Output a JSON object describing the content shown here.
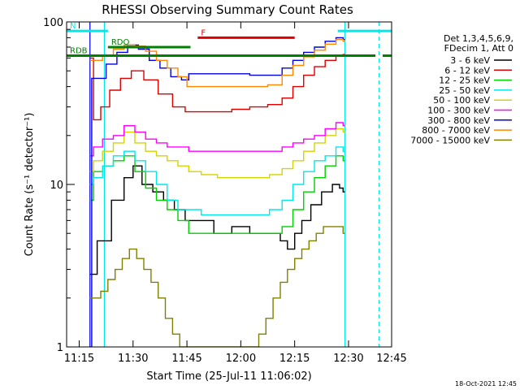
{
  "chart_data": {
    "type": "line",
    "title": "RHESSI Observing Summary Count Rates",
    "xlabel": "Start Time (25-Jul-11 11:06:02)",
    "ylabel": "Count Rate (s⁻¹ detector⁻¹)",
    "yscale": "log",
    "ylim": [
      1,
      100
    ],
    "xlim_minutes": [
      11.5,
      102
    ],
    "x_ticks": [
      {
        "label": "11:15",
        "minutes": 15
      },
      {
        "label": "11:30",
        "minutes": 30
      },
      {
        "label": "11:45",
        "minutes": 45
      },
      {
        "label": "12:00",
        "minutes": 60
      },
      {
        "label": "12:15",
        "minutes": 75
      },
      {
        "label": "12:30",
        "minutes": 90
      },
      {
        "label": "12:45",
        "minutes": 105
      }
    ],
    "y_ticks": [
      {
        "label": "1",
        "value": 1
      },
      {
        "label": "10",
        "value": 10
      },
      {
        "label": "100",
        "value": 100
      }
    ],
    "legend_header": [
      "Det 1,3,4,5,6,9,",
      "FDecim 1, Att 0"
    ],
    "legend_position": "right",
    "series": [
      {
        "name": "3 - 6 keV",
        "color": "#000000",
        "points": [
          [
            18,
            2.8
          ],
          [
            22,
            4.5
          ],
          [
            26,
            8
          ],
          [
            29,
            11
          ],
          [
            31,
            13
          ],
          [
            34,
            10
          ],
          [
            37,
            9
          ],
          [
            40,
            8
          ],
          [
            43,
            7
          ],
          [
            46,
            6
          ],
          [
            50,
            6
          ],
          [
            55,
            5
          ],
          [
            60,
            5.5
          ],
          [
            65,
            5
          ],
          [
            70,
            5
          ],
          [
            72,
            4.5
          ],
          [
            74,
            4
          ],
          [
            76,
            5
          ],
          [
            78,
            6
          ],
          [
            81,
            7.5
          ],
          [
            84,
            9
          ],
          [
            87,
            10
          ],
          [
            88,
            9.5
          ],
          [
            89,
            9
          ]
        ]
      },
      {
        "name": "6 - 12 keV",
        "color": "#e00000",
        "points": [
          [
            18,
            60
          ],
          [
            20,
            25
          ],
          [
            22,
            30
          ],
          [
            25,
            38
          ],
          [
            28,
            45
          ],
          [
            31,
            50
          ],
          [
            35,
            44
          ],
          [
            39,
            36
          ],
          [
            43,
            30
          ],
          [
            46,
            28
          ],
          [
            50,
            28
          ],
          [
            55,
            28
          ],
          [
            60,
            29
          ],
          [
            65,
            30
          ],
          [
            70,
            31
          ],
          [
            73,
            34
          ],
          [
            76,
            40
          ],
          [
            79,
            47
          ],
          [
            82,
            53
          ],
          [
            85,
            58
          ],
          [
            88,
            62
          ],
          [
            89,
            63
          ]
        ]
      },
      {
        "name": "12 - 25 keV",
        "color": "#00d000",
        "points": [
          [
            18,
            8
          ],
          [
            20,
            12
          ],
          [
            23,
            13
          ],
          [
            26,
            14
          ],
          [
            29,
            15
          ],
          [
            32,
            12
          ],
          [
            35,
            9.5
          ],
          [
            38,
            8
          ],
          [
            41,
            7
          ],
          [
            44,
            6
          ],
          [
            47,
            5
          ],
          [
            51,
            5
          ],
          [
            56,
            5
          ],
          [
            61,
            5
          ],
          [
            66,
            5
          ],
          [
            70,
            5
          ],
          [
            73,
            5.5
          ],
          [
            76,
            7
          ],
          [
            79,
            9
          ],
          [
            82,
            11
          ],
          [
            85,
            13
          ],
          [
            88,
            15
          ],
          [
            89,
            14
          ]
        ]
      },
      {
        "name": "25 - 50 keV",
        "color": "#00e8e8",
        "points": [
          [
            18,
            10
          ],
          [
            20,
            11
          ],
          [
            23,
            13
          ],
          [
            26,
            15
          ],
          [
            29,
            16
          ],
          [
            32,
            14
          ],
          [
            35,
            12
          ],
          [
            38,
            10
          ],
          [
            41,
            8
          ],
          [
            44,
            7
          ],
          [
            47,
            7
          ],
          [
            51,
            6.5
          ],
          [
            56,
            6.5
          ],
          [
            61,
            6.5
          ],
          [
            66,
            6.5
          ],
          [
            70,
            7
          ],
          [
            73,
            8
          ],
          [
            76,
            10
          ],
          [
            79,
            12
          ],
          [
            82,
            14
          ],
          [
            85,
            15
          ],
          [
            88,
            17
          ],
          [
            89,
            16
          ]
        ]
      },
      {
        "name": "50 - 100 keV",
        "color": "#d4d400",
        "points": [
          [
            18,
            12
          ],
          [
            20,
            14
          ],
          [
            23,
            16
          ],
          [
            26,
            18
          ],
          [
            29,
            21
          ],
          [
            32,
            18
          ],
          [
            35,
            16
          ],
          [
            38,
            15
          ],
          [
            41,
            14
          ],
          [
            44,
            13
          ],
          [
            47,
            12
          ],
          [
            51,
            11.5
          ],
          [
            56,
            11
          ],
          [
            61,
            11
          ],
          [
            66,
            11
          ],
          [
            70,
            11.5
          ],
          [
            73,
            12.5
          ],
          [
            76,
            14
          ],
          [
            79,
            16
          ],
          [
            82,
            18
          ],
          [
            85,
            20
          ],
          [
            88,
            22
          ],
          [
            89,
            21
          ]
        ]
      },
      {
        "name": "100 - 300 keV",
        "color": "#ff00ff",
        "points": [
          [
            18,
            15
          ],
          [
            20,
            17
          ],
          [
            23,
            19
          ],
          [
            26,
            20
          ],
          [
            29,
            23
          ],
          [
            32,
            21
          ],
          [
            35,
            19
          ],
          [
            38,
            18
          ],
          [
            41,
            17
          ],
          [
            44,
            17
          ],
          [
            47,
            16
          ],
          [
            51,
            16
          ],
          [
            56,
            16
          ],
          [
            61,
            16
          ],
          [
            66,
            16
          ],
          [
            70,
            16
          ],
          [
            73,
            17
          ],
          [
            76,
            18
          ],
          [
            79,
            19
          ],
          [
            82,
            20
          ],
          [
            85,
            22
          ],
          [
            88,
            24
          ],
          [
            89,
            23
          ]
        ]
      },
      {
        "name": "300 - 800 keV",
        "color": "#0000e0",
        "points": [
          [
            18,
            1
          ],
          [
            19,
            45
          ],
          [
            21,
            45
          ],
          [
            24,
            55
          ],
          [
            27,
            65
          ],
          [
            30,
            72
          ],
          [
            33,
            68
          ],
          [
            36,
            58
          ],
          [
            39,
            52
          ],
          [
            42,
            46
          ],
          [
            45,
            44
          ],
          [
            46,
            48
          ],
          [
            50,
            48
          ],
          [
            55,
            48
          ],
          [
            60,
            48
          ],
          [
            65,
            47
          ],
          [
            70,
            47
          ],
          [
            73,
            52
          ],
          [
            76,
            58
          ],
          [
            79,
            65
          ],
          [
            82,
            70
          ],
          [
            85,
            76
          ],
          [
            88,
            80
          ],
          [
            89,
            78
          ]
        ]
      },
      {
        "name": "800 - 7000 keV",
        "color": "#ff8800",
        "points": [
          [
            18,
            58
          ],
          [
            20,
            58
          ],
          [
            23,
            62
          ],
          [
            26,
            68
          ],
          [
            29,
            72
          ],
          [
            32,
            71
          ],
          [
            35,
            66
          ],
          [
            38,
            58
          ],
          [
            41,
            52
          ],
          [
            44,
            46
          ],
          [
            46,
            40
          ],
          [
            50,
            40
          ],
          [
            55,
            40
          ],
          [
            60,
            40
          ],
          [
            65,
            40
          ],
          [
            70,
            41
          ],
          [
            73,
            47
          ],
          [
            76,
            54
          ],
          [
            79,
            61
          ],
          [
            82,
            67
          ],
          [
            85,
            73
          ],
          [
            88,
            78
          ],
          [
            89,
            76
          ]
        ]
      },
      {
        "name": "7000 - 15000 keV",
        "color": "#808000",
        "points": [
          [
            18,
            2
          ],
          [
            20,
            2
          ],
          [
            22,
            2.2
          ],
          [
            24,
            2.6
          ],
          [
            26,
            3
          ],
          [
            28,
            3.5
          ],
          [
            30,
            4
          ],
          [
            32,
            3.5
          ],
          [
            34,
            3
          ],
          [
            36,
            2.5
          ],
          [
            38,
            2
          ],
          [
            40,
            1.5
          ],
          [
            42,
            1.2
          ],
          [
            44,
            1
          ],
          [
            48,
            1
          ],
          [
            52,
            1
          ],
          [
            56,
            1
          ],
          [
            60,
            1
          ],
          [
            64,
            1
          ],
          [
            66,
            1.2
          ],
          [
            68,
            1.5
          ],
          [
            70,
            2
          ],
          [
            72,
            2.5
          ],
          [
            74,
            3
          ],
          [
            76,
            3.5
          ],
          [
            78,
            4
          ],
          [
            80,
            4.5
          ],
          [
            82,
            5
          ],
          [
            84,
            5.5
          ],
          [
            86,
            5.5
          ],
          [
            88,
            5.5
          ],
          [
            89,
            5
          ]
        ]
      }
    ],
    "annotation_bars": [
      {
        "label": "N",
        "color": "#00e8e8",
        "segments": [
          [
            11.5,
            23
          ],
          [
            87,
            102
          ]
        ],
        "level": 88
      },
      {
        "label": "RDO",
        "color": "#008000",
        "segments": [
          [
            23,
            46
          ]
        ],
        "level": 70
      },
      {
        "label": "RDB",
        "color": "#008000",
        "segments": [
          [
            11.5,
            97.5
          ],
          [
            99.5,
            102
          ]
        ],
        "level": 62
      },
      {
        "label": "F",
        "color": "#e00000",
        "segments": [
          [
            48,
            75
          ]
        ],
        "level": 80
      }
    ],
    "vertical_markers": [
      {
        "minutes": 18,
        "color": "#0000e0",
        "style": "solid"
      },
      {
        "minutes": 89,
        "color": "#00e8e8",
        "style": "solid"
      },
      {
        "minutes": 98.5,
        "color": "#00e8e8",
        "style": "dashed"
      },
      {
        "minutes": 22,
        "color": "#00e8e8",
        "style": "solid"
      }
    ],
    "timestamp": "18-Oct-2021 12:45"
  }
}
